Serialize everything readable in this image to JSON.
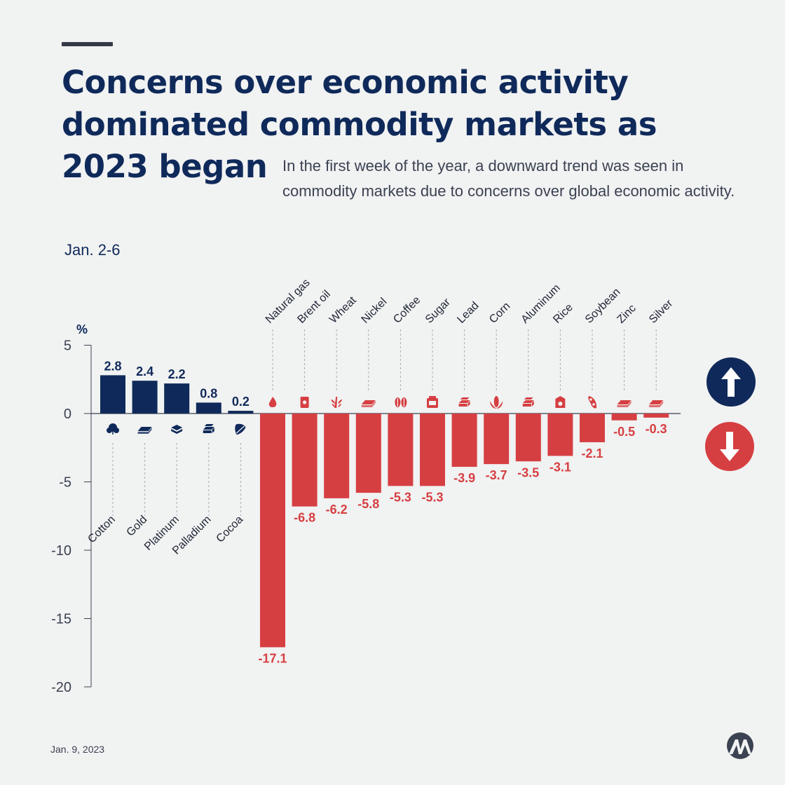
{
  "title": "Concerns over economic activity dominated commodity markets as 2023 began",
  "subtitle": "In the first week of the year, a downward trend was seen in commodity markets due to concerns over global economic activity.",
  "period": "Jan. 2-6",
  "date": "Jan. 9, 2023",
  "colors": {
    "positive": "#0f2a5a",
    "negative": "#d63f42",
    "axis": "#3b4252",
    "background": "#f1f2f2"
  },
  "chart_data": {
    "type": "bar",
    "title": "Concerns over economic activity dominated commodity markets as 2023 began",
    "ylabel": "%",
    "xlabel": "",
    "ylim": [
      -20,
      5
    ],
    "yticks": [
      5,
      0,
      -5,
      -10,
      -15,
      -20
    ],
    "ytick_labels": [
      "5",
      "0",
      "-5",
      "-10",
      "-15",
      "-20"
    ],
    "categories": [
      "Cotton",
      "Gold",
      "Platinum",
      "Palladium",
      "Cocoa",
      "Natural gas",
      "Brent oil",
      "Wheat",
      "Nickel",
      "Coffee",
      "Sugar",
      "Lead",
      "Corn",
      "Aluminum",
      "Rice",
      "Soybean",
      "Zinc",
      "Silver"
    ],
    "values": [
      2.8,
      2.4,
      2.2,
      0.8,
      0.2,
      -17.1,
      -6.8,
      -6.2,
      -5.8,
      -5.3,
      -5.3,
      -3.9,
      -3.7,
      -3.5,
      -3.1,
      -2.1,
      -0.5,
      -0.3
    ],
    "value_labels": [
      "2.8",
      "2.4",
      "2.2",
      "0.8",
      "0.2",
      "-17.1",
      "-6.8",
      "-6.2",
      "-5.8",
      "-5.3",
      "-5.3",
      "-3.9",
      "-3.7",
      "-3.5",
      "-3.1",
      "-2.1",
      "-0.5",
      "-0.3"
    ],
    "icons": [
      "cotton-icon",
      "gold-bar-icon",
      "platinum-icon",
      "palladium-icon",
      "cocoa-icon",
      "flame-icon",
      "oil-barrel-icon",
      "wheat-icon",
      "metal-ingot-icon",
      "coffee-bean-icon",
      "sugar-sack-icon",
      "metal-stack-icon",
      "corn-icon",
      "metal-stack-icon",
      "rice-sack-icon",
      "soybean-icon",
      "metal-ingot-icon",
      "metal-ingot-icon"
    ],
    "grid": false,
    "legend": "arrows on right: up = rise, down = fall"
  }
}
